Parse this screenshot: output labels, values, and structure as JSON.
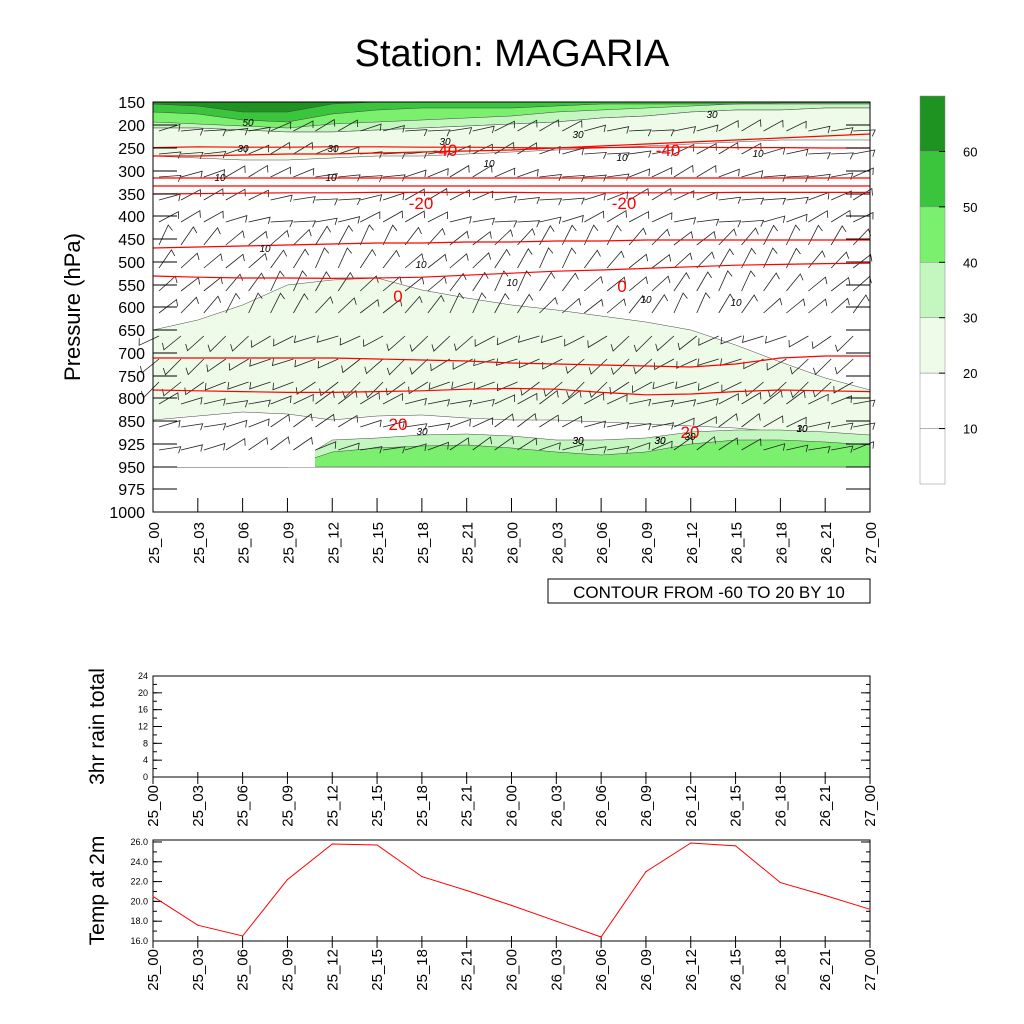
{
  "chart_data": [
    {
      "type": "contour",
      "title": "Station: MAGARIA",
      "ylabel": "Pressure (hPa)",
      "y_ticks": [
        "150",
        "200",
        "250",
        "300",
        "350",
        "400",
        "450",
        "500",
        "550",
        "600",
        "650",
        "700",
        "750",
        "800",
        "850",
        "925",
        "950",
        "975",
        "1000"
      ],
      "x_ticks": [
        "25_00",
        "25_03",
        "25_06",
        "25_09",
        "25_12",
        "25_15",
        "25_18",
        "25_21",
        "26_00",
        "26_03",
        "26_06",
        "26_09",
        "26_12",
        "26_15",
        "26_18",
        "26_21",
        "27_00"
      ],
      "contour_info": "CONTOUR FROM -60 TO 20 BY 10",
      "colorbar": {
        "labels": [
          "10",
          "20",
          "30",
          "40",
          "50",
          "60"
        ],
        "colors": [
          "#ffffff",
          "#eefbe9",
          "#c3f7bf",
          "#7bf06f",
          "#3ac53d",
          "#1e9321"
        ]
      },
      "temperature_contours": [
        {
          "label": "-40",
          "levels": [
            264,
            262,
            263,
            263,
            262,
            262,
            263,
            263,
            264,
            265,
            264,
            263,
            263,
            264,
            264,
            265,
            265
          ]
        },
        {
          "label": "-20",
          "levels": [
            380,
            379,
            378,
            377,
            377,
            376,
            376,
            376,
            376,
            377,
            377,
            377,
            377,
            376,
            376,
            376,
            376
          ]
        },
        {
          "label": "0",
          "levels": [
            585,
            588,
            590,
            590,
            591,
            590,
            588,
            583,
            578,
            573,
            570,
            566,
            562,
            558,
            556,
            554,
            553
          ]
        },
        {
          "label": "20",
          "levels": [
            870,
            872,
            874,
            876,
            876,
            874,
            872,
            868,
            866,
            868,
            876,
            882,
            880,
            874,
            870,
            872,
            874
          ]
        }
      ],
      "contour_labels": [
        "50",
        "30",
        "30",
        "30",
        "30",
        "30",
        "30",
        "30",
        "10",
        "10",
        "10",
        "10",
        "10",
        "10",
        "10",
        "10",
        "10",
        "10",
        "10",
        "30",
        "30",
        "30",
        "30",
        "30"
      ]
    },
    {
      "type": "line",
      "ylabel": "3hr rain total",
      "y_ticks": [
        "0",
        "4",
        "8",
        "12",
        "16",
        "20",
        "24"
      ],
      "ylim": [
        0,
        24
      ],
      "x_ticks": [
        "25_00",
        "25_03",
        "25_06",
        "25_09",
        "25_12",
        "25_15",
        "25_18",
        "25_21",
        "26_00",
        "26_03",
        "26_06",
        "26_09",
        "26_12",
        "26_15",
        "26_18",
        "26_21",
        "27_00"
      ],
      "values": [
        0,
        0,
        0,
        0,
        0,
        0,
        0,
        0,
        0,
        0,
        0,
        0,
        0,
        0,
        0,
        0,
        0
      ]
    },
    {
      "type": "line",
      "ylabel": "Temp at 2m",
      "y_ticks": [
        "16.0",
        "18.0",
        "20.0",
        "22.0",
        "24.0",
        "26.0"
      ],
      "ylim": [
        16,
        26.2
      ],
      "x_ticks": [
        "25_00",
        "25_03",
        "25_06",
        "25_09",
        "25_12",
        "25_15",
        "25_18",
        "25_21",
        "26_00",
        "26_03",
        "26_06",
        "26_09",
        "26_12",
        "26_15",
        "26_18",
        "26_21",
        "27_00"
      ],
      "values": [
        20.5,
        17.6,
        16.5,
        22.2,
        25.8,
        25.7,
        22.5,
        21.1,
        19.6,
        18.0,
        16.4,
        23.0,
        25.9,
        25.6,
        21.9,
        20.6,
        19.2
      ],
      "color": "#ff0000"
    }
  ]
}
